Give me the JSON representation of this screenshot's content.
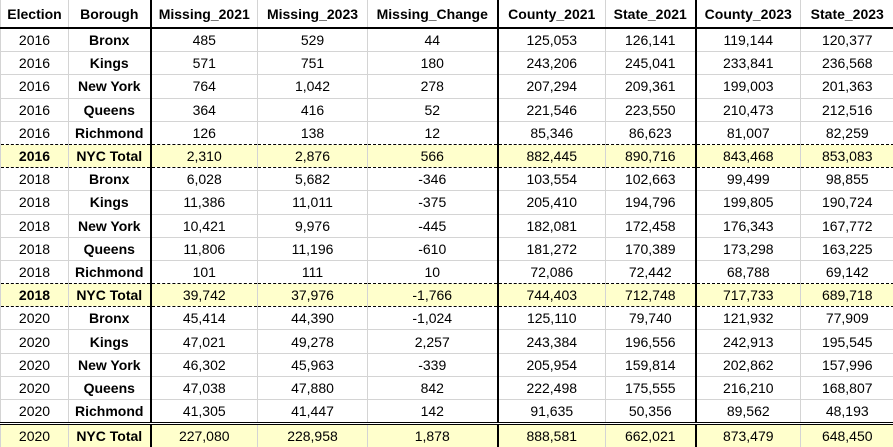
{
  "table": {
    "header": [
      "Election",
      "Borough",
      "Missing_2021",
      "Missing_2023",
      "Missing_Change",
      "County_2021",
      "State_2021",
      "County_2023",
      "State_2023"
    ],
    "rows": [
      [
        "2016",
        "Bronx",
        "485",
        "529",
        "44",
        "125,053",
        "126,141",
        "119,144",
        "120,377"
      ],
      [
        "2016",
        "Kings",
        "571",
        "751",
        "180",
        "243,206",
        "245,041",
        "233,841",
        "236,568"
      ],
      [
        "2016",
        "New York",
        "764",
        "1,042",
        "278",
        "207,294",
        "209,361",
        "199,003",
        "201,363"
      ],
      [
        "2016",
        "Queens",
        "364",
        "416",
        "52",
        "221,546",
        "223,550",
        "210,473",
        "212,516"
      ],
      [
        "2016",
        "Richmond",
        "126",
        "138",
        "12",
        "85,346",
        "86,623",
        "81,007",
        "82,259"
      ],
      [
        "2016",
        "NYC Total",
        "2,310",
        "2,876",
        "566",
        "882,445",
        "890,716",
        "843,468",
        "853,083"
      ],
      [
        "2018",
        "Bronx",
        "6,028",
        "5,682",
        "-346",
        "103,554",
        "102,663",
        "99,499",
        "98,855"
      ],
      [
        "2018",
        "Kings",
        "11,386",
        "11,011",
        "-375",
        "205,410",
        "194,796",
        "199,805",
        "190,724"
      ],
      [
        "2018",
        "New York",
        "10,421",
        "9,976",
        "-445",
        "182,081",
        "172,458",
        "176,343",
        "167,772"
      ],
      [
        "2018",
        "Queens",
        "11,806",
        "11,196",
        "-610",
        "181,272",
        "170,389",
        "173,298",
        "163,225"
      ],
      [
        "2018",
        "Richmond",
        "101",
        "111",
        "10",
        "72,086",
        "72,442",
        "68,788",
        "69,142"
      ],
      [
        "2018",
        "NYC Total",
        "39,742",
        "37,976",
        "-1,766",
        "744,403",
        "712,748",
        "717,733",
        "689,718"
      ],
      [
        "2020",
        "Bronx",
        "45,414",
        "44,390",
        "-1,024",
        "125,110",
        "79,740",
        "121,932",
        "77,909"
      ],
      [
        "2020",
        "Kings",
        "47,021",
        "49,278",
        "2,257",
        "243,384",
        "196,556",
        "242,913",
        "195,545"
      ],
      [
        "2020",
        "New York",
        "46,302",
        "45,963",
        "-339",
        "205,954",
        "159,814",
        "202,862",
        "157,996"
      ],
      [
        "2020",
        "Queens",
        "47,038",
        "47,880",
        "842",
        "222,498",
        "175,555",
        "216,210",
        "168,807"
      ],
      [
        "2020",
        "Richmond",
        "41,305",
        "41,447",
        "142",
        "91,635",
        "50,356",
        "89,562",
        "48,193"
      ],
      [
        "2020",
        "NYC Total",
        "227,080",
        "228,958",
        "1,878",
        "888,581",
        "662,021",
        "873,479",
        "648,450"
      ]
    ]
  }
}
